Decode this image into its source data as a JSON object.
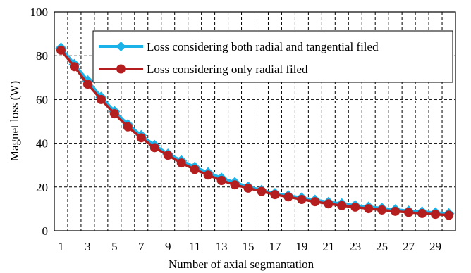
{
  "chart_data": {
    "type": "line",
    "xlabel": "Number of axial segmantation",
    "ylabel": "Magnet loss (W)",
    "xlim": [
      1,
      30
    ],
    "ylim": [
      0,
      100
    ],
    "x": [
      1,
      2,
      3,
      4,
      5,
      6,
      7,
      8,
      9,
      10,
      11,
      12,
      13,
      14,
      15,
      16,
      17,
      18,
      19,
      20,
      21,
      22,
      23,
      24,
      25,
      26,
      27,
      28,
      29,
      30
    ],
    "x_tick_labels": [
      "1",
      "3",
      "5",
      "7",
      "9",
      "11",
      "13",
      "15",
      "17",
      "19",
      "21",
      "23",
      "25",
      "27",
      "29"
    ],
    "y_tick_labels": [
      "0",
      "20",
      "40",
      "60",
      "80",
      "100"
    ],
    "grid": "dashed",
    "legend_position": "top-right",
    "series": [
      {
        "name": "Loss considering both radial and tangential filed",
        "color": "#1ab2e8",
        "marker": "diamond",
        "values": [
          83.5,
          76,
          68.5,
          61,
          54.5,
          48.5,
          43.5,
          39,
          35,
          32,
          29,
          26.5,
          24,
          22,
          20,
          18.5,
          17,
          16,
          15,
          14,
          13,
          12.3,
          11.5,
          10.8,
          10.2,
          9.6,
          9,
          8.6,
          8.2,
          7.8
        ]
      },
      {
        "name": "Loss considering only radial filed",
        "color": "#b41e1e",
        "marker": "circle",
        "values": [
          82.5,
          75,
          67,
          60,
          53.5,
          47.5,
          42.5,
          38,
          34.5,
          31,
          28,
          25.5,
          23,
          21,
          19.5,
          18,
          16.5,
          15.5,
          14.3,
          13.3,
          12.3,
          11.5,
          10.8,
          10.1,
          9.5,
          8.9,
          8.4,
          7.9,
          7.5,
          7.1
        ]
      }
    ]
  }
}
